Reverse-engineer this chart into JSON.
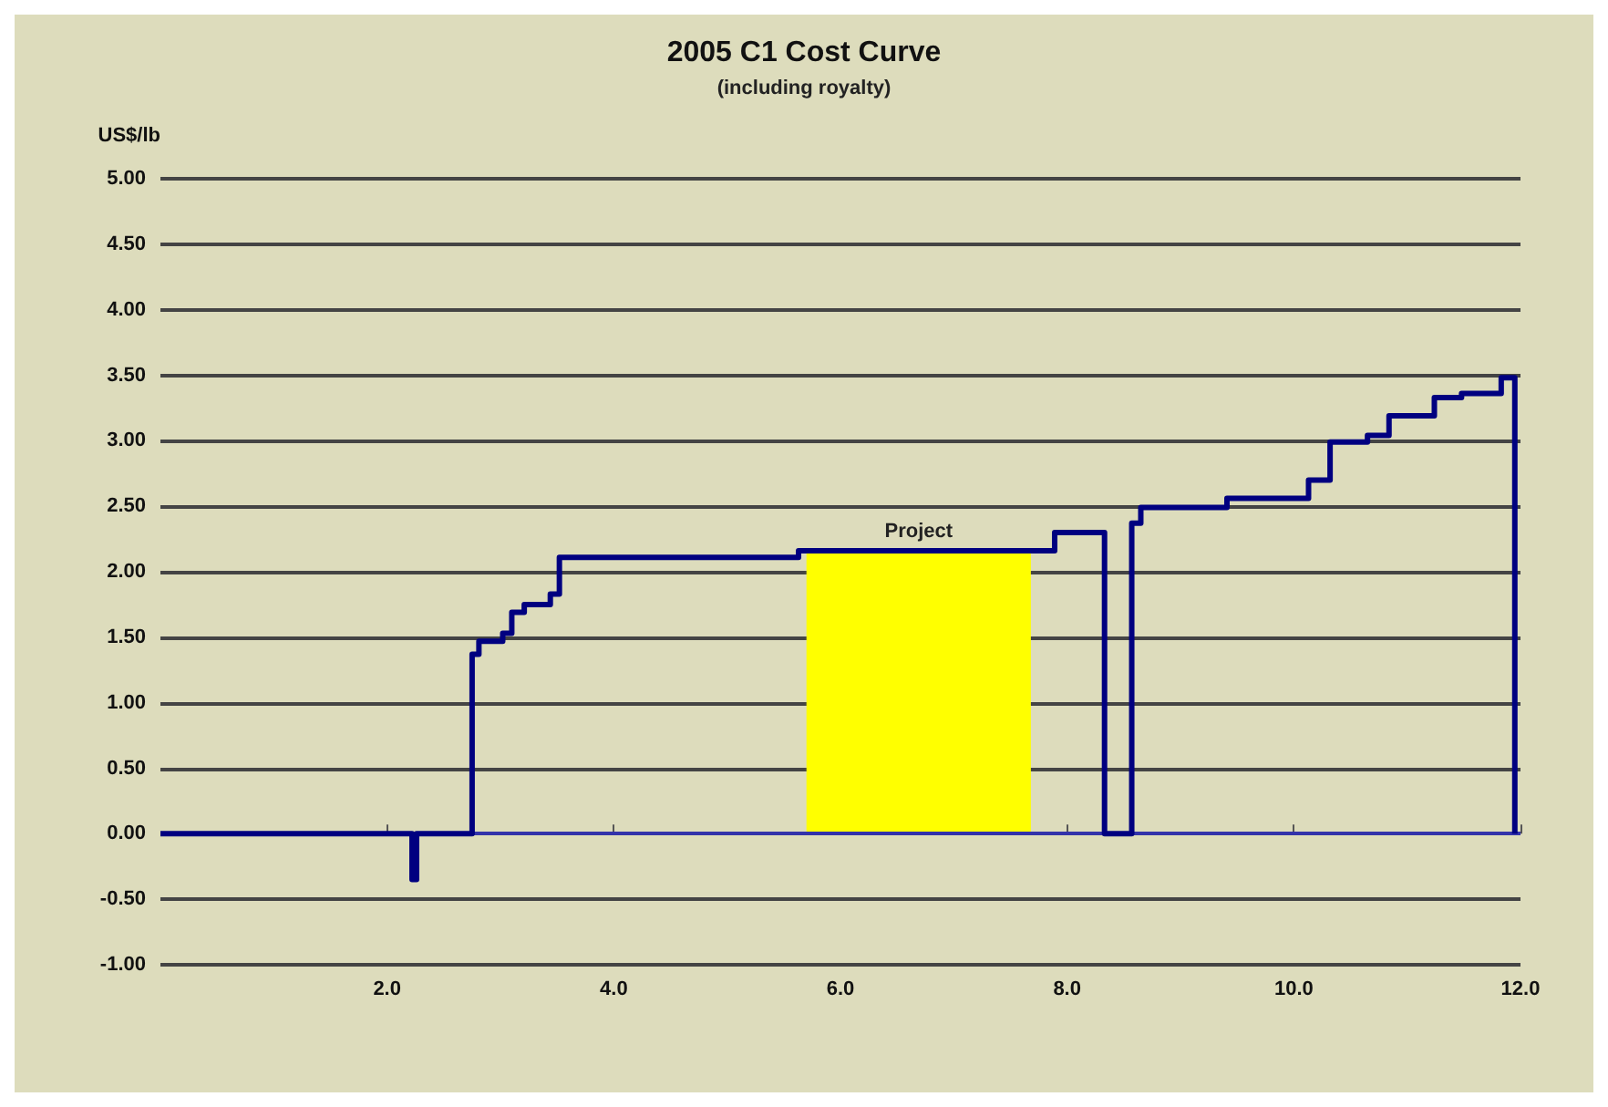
{
  "chart_data": {
    "type": "step",
    "title": "2005 C1 Cost Curve",
    "subtitle": "(including royalty)",
    "ylabel": "US$/lb",
    "x": [
      0,
      2.22,
      2.26,
      2.75,
      2.81,
      3.02,
      3.1,
      3.21,
      3.44,
      3.52,
      5.63,
      7.89,
      8.33,
      8.57,
      8.65,
      9.41,
      10.13,
      10.32,
      10.65,
      10.84,
      11.24,
      11.48,
      11.83,
      11.95
    ],
    "series": [
      {
        "color": "#000080",
        "values": [
          0,
          -0.35,
          0,
          1.37,
          1.47,
          1.53,
          1.69,
          1.75,
          1.83,
          2.11,
          2.16,
          2.3,
          0,
          2.37,
          2.49,
          2.56,
          2.7,
          2.99,
          3.04,
          3.19,
          3.33,
          3.36,
          3.48,
          0
        ]
      }
    ],
    "xlim": [
      0,
      12
    ],
    "xticks": [
      {
        "value": 2,
        "label": "2.0"
      },
      {
        "value": 4,
        "label": "4.0"
      },
      {
        "value": 6,
        "label": "6.0"
      },
      {
        "value": 8,
        "label": "8.0"
      },
      {
        "value": 10,
        "label": "10.0"
      },
      {
        "value": 12,
        "label": "12.0"
      }
    ],
    "ylim": [
      -1,
      5
    ],
    "yticks": [
      {
        "value": -1,
        "label": "-1.00"
      },
      {
        "value": -0.5,
        "label": "-0.50"
      },
      {
        "value": 0,
        "label": "0.00"
      },
      {
        "value": 0.5,
        "label": "0.50"
      },
      {
        "value": 1,
        "label": "1.00"
      },
      {
        "value": 1.5,
        "label": "1.50"
      },
      {
        "value": 2,
        "label": "2.00"
      },
      {
        "value": 2.5,
        "label": "2.50"
      },
      {
        "value": 3,
        "label": "3.00"
      },
      {
        "value": 3.5,
        "label": "3.50"
      },
      {
        "value": 4,
        "label": "4.00"
      },
      {
        "value": 4.5,
        "label": "4.50"
      },
      {
        "value": 5,
        "label": "5.00"
      }
    ],
    "bands": [
      {
        "axis": "x",
        "from": 5.7,
        "to": 7.68,
        "label": "Project",
        "color": "#ffff00"
      }
    ],
    "ref_lines": [
      {
        "axis": "y",
        "value": 0,
        "color": "#3333aa"
      }
    ],
    "grid": "y",
    "marker": "none"
  }
}
